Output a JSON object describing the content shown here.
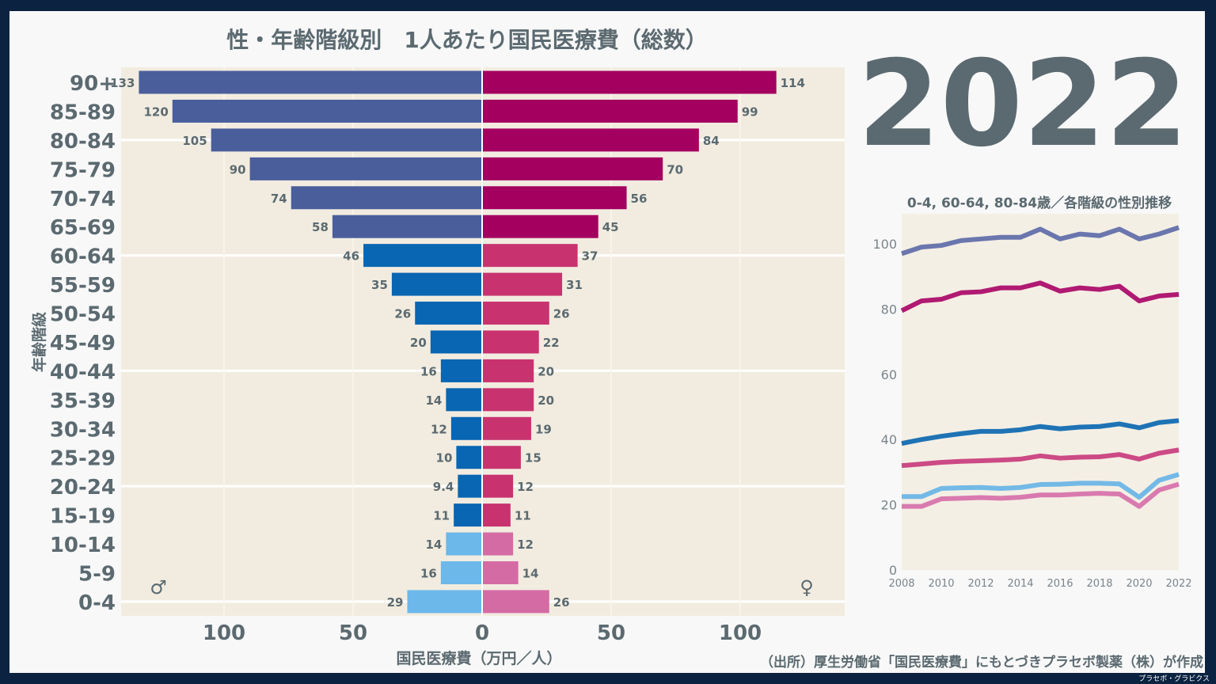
{
  "year": "2022",
  "brand": "プラセボ・グラビクス",
  "source": "（出所）厚生労働省「国民医療費」にもとづきプラセボ製薬（株）が作成",
  "chart_data": [
    {
      "type": "bar",
      "title": "性・年齢階級別　1人あたり国民医療費（総数）",
      "xlabel": "国民医療費（万円／人）",
      "ylabel": "年齢階級",
      "xlim": [
        -140,
        140
      ],
      "x_ticks": [
        "100",
        "50",
        "0",
        "50",
        "100"
      ],
      "male_symbol": "♂",
      "female_symbol": "♀",
      "categories": [
        "90+",
        "85-89",
        "80-84",
        "75-79",
        "70-74",
        "65-69",
        "60-64",
        "55-59",
        "50-54",
        "45-49",
        "40-44",
        "35-39",
        "30-34",
        "25-29",
        "20-24",
        "15-19",
        "10-14",
        "5-9",
        "0-4"
      ],
      "series": [
        {
          "sex": "male",
          "values": [
            133,
            120,
            105,
            90,
            74,
            58,
            46,
            35,
            26,
            20,
            16,
            14,
            12,
            10,
            9.4,
            11,
            14,
            16,
            29
          ],
          "labels": [
            "133",
            "120",
            "105",
            "90",
            "74",
            "58",
            "46",
            "35",
            "26",
            "20",
            "16",
            "14",
            "12",
            "10",
            "9.4",
            "11",
            "14",
            "16",
            "29"
          ]
        },
        {
          "sex": "female",
          "values": [
            114,
            99,
            84,
            70,
            56,
            45,
            37,
            31,
            26,
            22,
            20,
            20,
            19,
            15,
            12,
            11,
            12,
            14,
            26
          ],
          "labels": [
            "114",
            "99",
            "84",
            "70",
            "56",
            "45",
            "37",
            "31",
            "26",
            "22",
            "20",
            "20",
            "19",
            "15",
            "12",
            "11",
            "12",
            "14",
            "26"
          ]
        }
      ],
      "colors": {
        "male_65plus": "#4a5e9c",
        "male_15_64": "#0866b2",
        "male_0_14": "#6cb8ea",
        "female_65plus": "#a3005f",
        "female_15_64": "#c8336f",
        "female_0_14": "#d46ba5"
      },
      "grid": true
    },
    {
      "type": "line",
      "title": "0-4, 60-64, 80-84歳／各階級の性別推移",
      "x": [
        2008,
        2009,
        2010,
        2011,
        2012,
        2013,
        2014,
        2015,
        2016,
        2017,
        2018,
        2019,
        2020,
        2021,
        2022
      ],
      "x_ticks": [
        "2008",
        "2010",
        "2012",
        "2014",
        "2016",
        "2018",
        "2020",
        "2022"
      ],
      "y_ticks": [
        "0",
        "20",
        "40",
        "60",
        "80",
        "100"
      ],
      "ylim": [
        0,
        108
      ],
      "series": [
        {
          "group": "80-84 male",
          "color": "#6a76ad",
          "values": [
            97,
            99,
            99.5,
            101,
            101.5,
            102,
            102,
            104.5,
            101.5,
            103,
            102.5,
            104.5,
            101.5,
            103,
            105
          ]
        },
        {
          "group": "80-84 female",
          "color": "#b01a72",
          "values": [
            79.5,
            82.5,
            83,
            85,
            85.3,
            86.5,
            86.5,
            88,
            85.5,
            86.5,
            86,
            87,
            82.5,
            84,
            84.5
          ]
        },
        {
          "group": "60-64 male",
          "color": "#1e73b5",
          "values": [
            38.8,
            40,
            41,
            41.8,
            42.5,
            42.5,
            43,
            44,
            43.3,
            43.8,
            44,
            44.8,
            43.6,
            45.2,
            45.8
          ]
        },
        {
          "group": "60-64 female",
          "color": "#cc4a85",
          "values": [
            32,
            32.5,
            33,
            33.3,
            33.5,
            33.7,
            34,
            35,
            34.3,
            34.6,
            34.7,
            35.4,
            34,
            35.8,
            36.8
          ]
        },
        {
          "group": "0-4 male",
          "color": "#72b9e6",
          "values": [
            22.5,
            22.5,
            25,
            25.2,
            25.3,
            25,
            25.3,
            26.2,
            26.3,
            26.6,
            26.6,
            26.4,
            22.3,
            27.5,
            29.3
          ]
        },
        {
          "group": "0-4 female",
          "color": "#d97aaf",
          "values": [
            19.5,
            19.5,
            21.8,
            22,
            22.2,
            22,
            22.3,
            23,
            23,
            23.3,
            23.5,
            23.3,
            19.5,
            24.5,
            26.3
          ]
        }
      ]
    }
  ]
}
